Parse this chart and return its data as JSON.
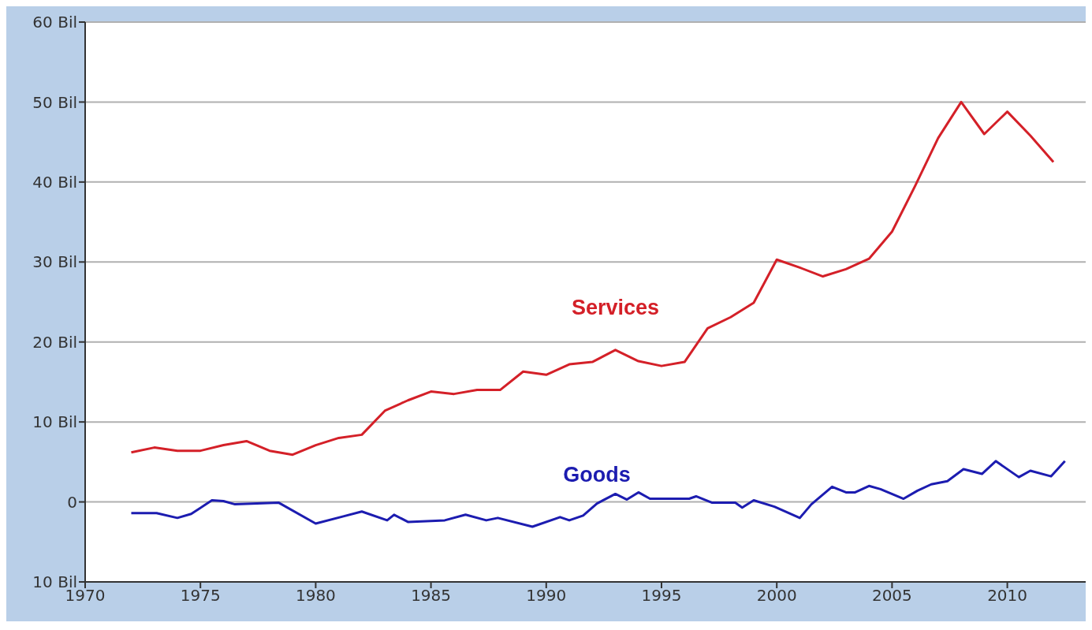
{
  "chart_data": {
    "type": "line",
    "xlim": [
      1970,
      2013.4
    ],
    "xticks": [
      1970,
      1975,
      1980,
      1985,
      1990,
      1995,
      2000,
      2005,
      2010
    ],
    "ylim": [
      -10,
      60
    ],
    "yticks": [
      {
        "value": -10,
        "label": "10 Bil"
      },
      0,
      {
        "value": 10,
        "label": "10 Bil"
      },
      {
        "value": 20,
        "label": "20 Bil"
      },
      {
        "value": 30,
        "label": "30 Bil"
      },
      {
        "value": 40,
        "label": "40 Bil"
      },
      {
        "value": 50,
        "label": "50 Bil"
      },
      {
        "value": 60,
        "label": "60 Bil"
      }
    ],
    "grid": "y",
    "series": [
      {
        "name": "Services",
        "color": "#d42028",
        "x": [
          1972,
          1973,
          1974,
          1975,
          1976,
          1977,
          1978,
          1979,
          1980,
          1981,
          1982,
          1983,
          1984,
          1985,
          1986,
          1987,
          1988,
          1989,
          1990,
          1991,
          1992,
          1993,
          1994,
          1995,
          1996,
          1997,
          1998,
          1999,
          2000,
          2001,
          2002,
          2003,
          2004,
          2005,
          2006,
          2007,
          2008,
          2009,
          2010,
          2011,
          2012
        ],
        "values": [
          6.2,
          6.8,
          6.4,
          6.4,
          7.1,
          7.6,
          6.4,
          5.9,
          7.1,
          8.0,
          8.4,
          11.4,
          12.7,
          13.8,
          13.5,
          14.0,
          14.0,
          16.3,
          15.9,
          17.2,
          17.5,
          19.0,
          17.6,
          17.0,
          17.5,
          21.7,
          23.1,
          24.9,
          30.3,
          29.3,
          28.2,
          29.1,
          30.4,
          33.8,
          39.5,
          45.5,
          50.0,
          46.0,
          48.8,
          45.8,
          42.5
        ]
      },
      {
        "name": "Goods",
        "color": "#1c1cb0",
        "x": [
          1972.0,
          1973.1,
          1974.0,
          1974.6,
          1975.5,
          1976.0,
          1976.5,
          1978.4,
          1980.0,
          1981.2,
          1982.0,
          1983.1,
          1983.4,
          1984.0,
          1985.6,
          1986.5,
          1987.4,
          1987.9,
          1989.4,
          1990.6,
          1991.0,
          1991.6,
          1992.2,
          1993.0,
          1993.5,
          1994.0,
          1994.5,
          1996.2,
          1996.5,
          1997.2,
          1998.2,
          1998.5,
          1999.0,
          1999.9,
          2001.0,
          2001.5,
          2002.4,
          2003.0,
          2003.4,
          2004.0,
          2004.5,
          2005.5,
          2006.1,
          2006.7,
          2007.4,
          2008.1,
          2008.9,
          2009.5,
          2010.5,
          2011.0,
          2011.9,
          2012.5
        ],
        "values": [
          -1.4,
          -1.4,
          -2.0,
          -1.5,
          0.2,
          0.1,
          -0.3,
          -0.1,
          -2.7,
          -1.8,
          -1.2,
          -2.3,
          -1.6,
          -2.5,
          -2.3,
          -1.6,
          -2.3,
          -2.0,
          -3.1,
          -1.9,
          -2.3,
          -1.7,
          -0.2,
          1.0,
          0.3,
          1.2,
          0.4,
          0.4,
          0.7,
          -0.1,
          -0.1,
          -0.7,
          0.2,
          -0.6,
          -2.0,
          -0.3,
          1.9,
          1.2,
          1.2,
          2.0,
          1.6,
          0.4,
          1.4,
          2.2,
          2.6,
          4.1,
          3.5,
          5.1,
          3.1,
          3.9,
          3.2,
          5.1
        ]
      }
    ]
  }
}
